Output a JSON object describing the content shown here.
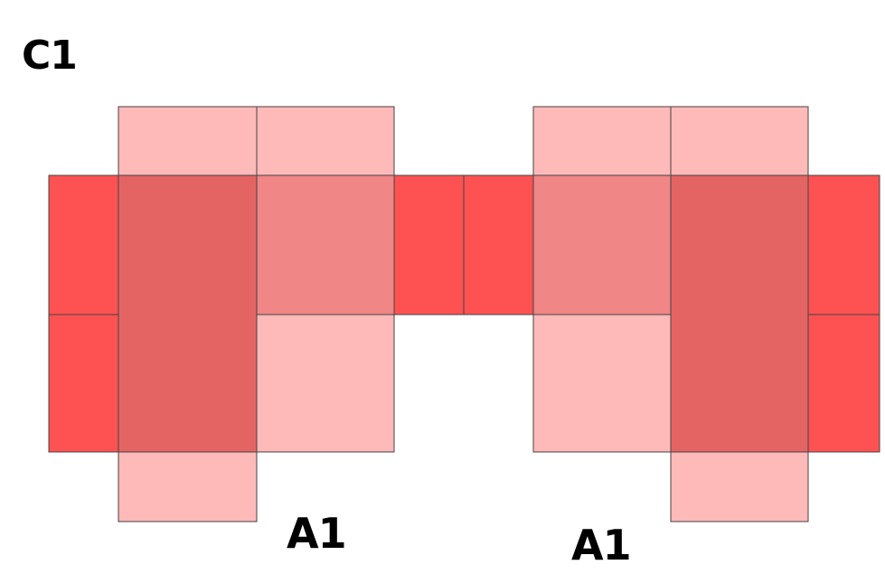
{
  "labels": {
    "top_left": "C1",
    "bottom_left": "A1",
    "bottom_right": "A1"
  },
  "colors": {
    "red": "#fe5252",
    "dark": "#e46464",
    "mid": "#f08686",
    "light": "#feb9b9",
    "border": "#444444"
  }
}
